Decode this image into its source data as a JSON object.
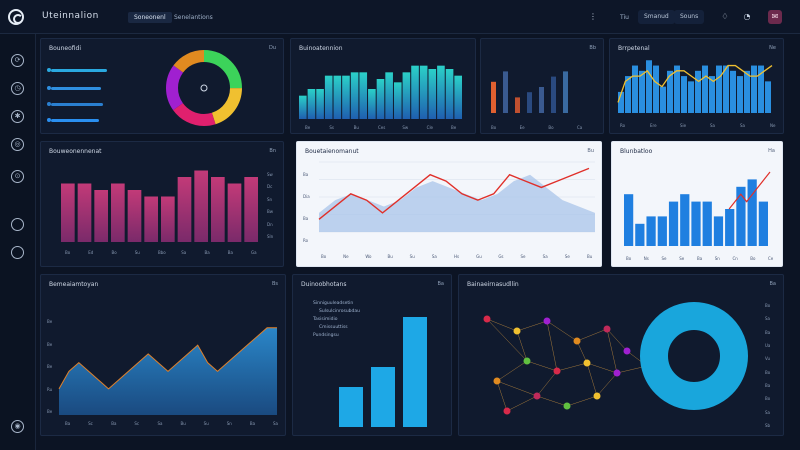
{
  "header": {
    "app_title": "Uteinnalion",
    "tabs": [
      {
        "label": "Soneonenl",
        "active": true
      },
      {
        "label": "Senelantions",
        "active": false
      }
    ],
    "right_controls": {
      "small_label": "Tiu",
      "filter_label": "Smanud",
      "menu_label": "Souns"
    }
  },
  "sidebar": {
    "icons": [
      "refresh-icon",
      "clock-icon",
      "settings-icon",
      "globe-icon",
      "target-icon",
      "circle-icon",
      "circle-icon",
      "info-icon"
    ]
  },
  "panels": {
    "donut": {
      "title": "Bouneofidi",
      "meta": "Du",
      "legend_colors": [
        "#2aa9e0",
        "#2f8fe0",
        "#2a7fd0",
        "#2a8ff0"
      ],
      "segments": [
        {
          "value": 25,
          "color": "#3cd35a"
        },
        {
          "value": 20,
          "color": "#f0c030"
        },
        {
          "value": 20,
          "color": "#e0206e"
        },
        {
          "value": 20,
          "color": "#a020d0"
        },
        {
          "value": 15,
          "color": "#e08a20"
        }
      ]
    },
    "bars_teal": {
      "title": "Buinoatennion",
      "meta": "Bb",
      "ticks_x": [
        "Be",
        "Ss",
        "Bu",
        "Ces",
        "Sw",
        "Cle",
        "Be"
      ],
      "chart_data": {
        "type": "bar",
        "values": [
          7,
          9,
          9,
          13,
          13,
          13,
          14,
          14,
          9,
          12,
          14,
          11,
          14,
          16,
          16,
          15,
          16,
          15,
          13
        ]
      }
    },
    "mini_bars": {
      "ticks_x": [
        "Bo",
        "Ee",
        "Bo",
        "Ca"
      ],
      "chart_data": {
        "type": "bar",
        "values": [
          6,
          8,
          3,
          4,
          5,
          7,
          8
        ]
      }
    },
    "line_bars": {
      "title": "Brrpetenal",
      "meta": "Ne",
      "ticks_x": [
        "Ro",
        "Ere",
        "Sie",
        "Sa",
        "Sa",
        "Ne"
      ],
      "chart_data": {
        "type": "line",
        "bars": [
          4,
          7,
          9,
          8,
          10,
          9,
          5,
          8,
          9,
          7,
          6,
          8,
          9,
          7,
          9,
          9,
          8,
          7,
          8,
          9,
          9,
          6
        ],
        "line": [
          2,
          6,
          7,
          7,
          8,
          6,
          5,
          7,
          8,
          8,
          7,
          6,
          7,
          6,
          7,
          9,
          9,
          8,
          7,
          7,
          8,
          9
        ]
      }
    },
    "pink_bars": {
      "title": "Bouweonennenat",
      "meta": "Bn",
      "ticks_x": [
        "Bo",
        "Ed",
        "Bo",
        "Su",
        "Bbo",
        "Sa",
        "Ba",
        "Ba",
        "Ga"
      ],
      "ticks_y": [
        "Sw",
        "Dc",
        "Sn",
        "Bw",
        "Dn",
        "Sln"
      ],
      "chart_data": {
        "type": "bar",
        "values": [
          9,
          9,
          8,
          9,
          8,
          7,
          7,
          10,
          11,
          10,
          9,
          10
        ]
      }
    },
    "area_red": {
      "title": "Bouetaienomanut",
      "meta": "Bu",
      "ticks_x": [
        "Bo",
        "Ne",
        "Wo",
        "Bu",
        "Su",
        "Sa",
        "Hs",
        "Gu",
        "Gs",
        "Se",
        "Sa",
        "Se",
        "Bu"
      ],
      "ticks_y": [
        "Ba",
        "Dia",
        "Ba",
        "Ro"
      ],
      "chart_data": {
        "type": "line",
        "area": [
          3,
          5,
          6,
          5,
          4,
          5,
          7,
          8,
          7,
          6,
          5,
          6,
          8,
          9,
          7,
          5,
          4,
          3
        ],
        "line": [
          2,
          4,
          6,
          5,
          3,
          5,
          7,
          9,
          8,
          6,
          5,
          6,
          9,
          8,
          7,
          8,
          9,
          10
        ]
      }
    },
    "blue_bars": {
      "title": "Blunbatloo",
      "meta": "Ha",
      "ticks_x": [
        "Bo",
        "Ns",
        "Se",
        "Se",
        "Ba",
        "Sn",
        "Cn",
        "Bo",
        "Ce"
      ],
      "chart_data": {
        "type": "bar",
        "values": [
          7,
          3,
          4,
          4,
          6,
          7,
          6,
          6,
          4,
          5,
          8,
          9,
          6
        ],
        "line": [
          5,
          6,
          7,
          6,
          7,
          8,
          9,
          10
        ]
      }
    },
    "area_blue": {
      "title": "Bemeaiamtoyan",
      "meta": "Bs",
      "ticks_x": [
        "Ba",
        "Sc",
        "Ba",
        "Sc",
        "Sa",
        "Bu",
        "Su",
        "Sn",
        "Ba",
        "Sa"
      ],
      "ticks_y": [
        "Be",
        "Be",
        "Be",
        "Ru",
        "Be"
      ],
      "chart_data": {
        "type": "area",
        "values": [
          3,
          5,
          6,
          5,
          4,
          3,
          4,
          5,
          6,
          7,
          6,
          5,
          6,
          7,
          8,
          6,
          5,
          6,
          7,
          8,
          9,
          10,
          10
        ]
      }
    },
    "vbars": {
      "title": "Duinoobhotans",
      "meta": "Ba",
      "annotations": [
        "Sinniguuleadsetin",
        "Sulsulcinrosubdau",
        "Tasisimidio",
        "Cmissuuttiss",
        "Pundsingsu"
      ],
      "chart_data": {
        "type": "bar",
        "values": [
          4,
          8,
          12,
          22
        ]
      }
    },
    "network": {
      "title": "Bainaeirnasudllin",
      "meta": "Ba",
      "side_labels": [
        "Bo",
        "Sa",
        "Ba",
        "Ua",
        "Vu",
        "Bo",
        "Ba",
        "Bo",
        "Sa",
        "Sb"
      ],
      "ring_color": "#19a6dc"
    }
  }
}
